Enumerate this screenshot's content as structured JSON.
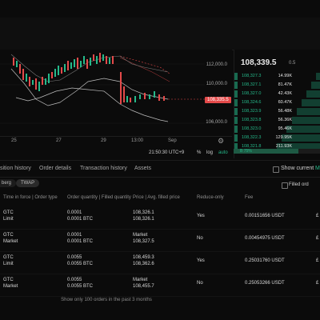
{
  "chart": {
    "price_axis": [
      "112,000.0",
      "110,000.0",
      "106,000.0"
    ],
    "current_price_tag": "108,335.5",
    "date_axis": [
      "25",
      "27",
      "29",
      "13:00",
      "Sep"
    ],
    "footer": {
      "time": "21:50:30 UTC+9",
      "percent_label": "%",
      "log_label": "log",
      "auto_label": "auto"
    }
  },
  "orderbook": {
    "last_price": "108,339.5",
    "last_price_change": "0.5",
    "rows": [
      {
        "price": "108,327.3",
        "size": "14.99K",
        "depth": 0.1
      },
      {
        "price": "108,327.1",
        "size": "81.47K",
        "depth": 0.22
      },
      {
        "price": "108,327.0",
        "size": "42.43K",
        "depth": 0.32
      },
      {
        "price": "108,324.6",
        "size": "60.47K",
        "depth": 0.44
      },
      {
        "price": "108,323.9",
        "size": "56.48K",
        "depth": 0.55
      },
      {
        "price": "108,323.8",
        "size": "56.36K",
        "depth": 0.66
      },
      {
        "price": "108,323.0",
        "size": "95.46K",
        "depth": 0.78
      },
      {
        "price": "108,322.3",
        "size": "129.95K",
        "depth": 0.89
      },
      {
        "price": "108,321.8",
        "size": "211.93K",
        "depth": 1.0
      }
    ],
    "buy_percent": "B 75%",
    "buy_share": 0.75
  },
  "tabs": {
    "items": [
      "sition history",
      "Order details",
      "Transaction history",
      "Assets"
    ],
    "show_current": "Show current",
    "filled_order": "Filled ord",
    "m_label": "M"
  },
  "filters": {
    "chips": [
      "berg",
      "TWAP"
    ]
  },
  "table": {
    "headers": {
      "tif": "Time in force | Order type",
      "qty": "Order quantity | Filled quantity",
      "price": "Price | Avg. filled price",
      "reduce": "Reduce-only",
      "fee": "Fee"
    },
    "rows": [
      {
        "tif": "GTC",
        "type": "Limit",
        "qty1": "0.0001",
        "qty2": "0.0001 BTC",
        "price1": "108,326.1",
        "price2": "108,326.1",
        "reduce": "Yes",
        "fee": "0.00151656 USDT",
        "edge": "£"
      },
      {
        "tif": "GTC",
        "type": "Market",
        "qty1": "0.0001",
        "qty2": "0.0001 BTC",
        "price1": "Market",
        "price2": "108,327.5",
        "reduce": "No",
        "fee": "0.00454975 USDT",
        "edge": "£"
      },
      {
        "tif": "GTC",
        "type": "Limit",
        "qty1": "0.0055",
        "qty2": "0.0055 BTC",
        "price1": "108,459.3",
        "price2": "108,362.6",
        "reduce": "Yes",
        "fee": "0.25031760 USDT",
        "edge": "£"
      },
      {
        "tif": "GTC",
        "type": "Market",
        "qty1": "0.0055",
        "qty2": "0.0055 BTC",
        "price1": "Market",
        "price2": "108,455.7",
        "reduce": "No",
        "fee": "0.25053266 USDT",
        "edge": "£"
      }
    ],
    "note": "Show only 100 orders in the past 3 months"
  },
  "colors": {
    "up": "#25b98a",
    "down": "#e44a4a",
    "accent": "#25b98a"
  }
}
